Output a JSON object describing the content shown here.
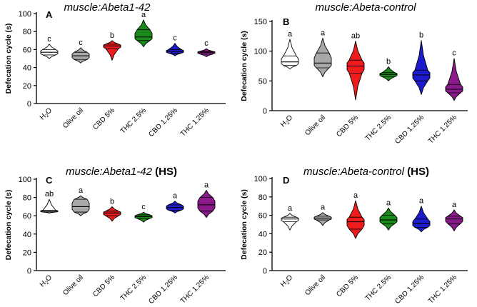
{
  "figure": {
    "categories": [
      "H2O",
      "Olive oil",
      "CBD 5%",
      "THC 2.5%",
      "CBD 1.25%",
      "THC 1.25%"
    ],
    "colors": {
      "H2O": "#ffffff",
      "Olive oil": "#a8a8a8",
      "CBD 5%": "#ee1c1c",
      "THC 2.5%": "#1a8a1a",
      "CBD 1.25%": "#1c1ccc",
      "THC 1.25%": "#8a1a8a"
    }
  },
  "chart_data": [
    {
      "panel": "A",
      "type": "violin",
      "title": "muscle:Abeta1-42",
      "title_suffix": "",
      "ylabel": "Defecation cycle (s)",
      "ylim": [
        0,
        100
      ],
      "yticks": [
        0,
        20,
        40,
        60,
        80,
        100
      ],
      "categories": [
        "H2O",
        "Olive oil",
        "CBD 5%",
        "THC 2.5%",
        "CBD 1.25%",
        "THC 1.25%"
      ],
      "series": [
        {
          "category": "H2O",
          "min": 50,
          "q1": 54,
          "median": 57,
          "q3": 60,
          "max": 66,
          "letter": "c"
        },
        {
          "category": "Olive oil",
          "min": 45,
          "q1": 49,
          "median": 53,
          "q3": 57,
          "max": 62,
          "letter": "c"
        },
        {
          "category": "CBD 5%",
          "min": 48,
          "q1": 61,
          "median": 64,
          "q3": 66,
          "max": 70,
          "letter": "b"
        },
        {
          "category": "THC 2.5%",
          "min": 63,
          "q1": 70,
          "median": 74,
          "q3": 82,
          "max": 93,
          "letter": "a"
        },
        {
          "category": "CBD 1.25%",
          "min": 53,
          "q1": 56,
          "median": 58,
          "q3": 60,
          "max": 67,
          "letter": "c"
        },
        {
          "category": "THC 1.25%",
          "min": 52,
          "q1": 55,
          "median": 57,
          "q3": 58,
          "max": 61,
          "letter": "c"
        }
      ]
    },
    {
      "panel": "B",
      "type": "violin",
      "title": "muscle:Abeta-control",
      "title_suffix": "",
      "ylabel": "Defecation cycle (s)",
      "ylim": [
        0,
        150
      ],
      "yticks": [
        0,
        50,
        100,
        150
      ],
      "categories": [
        "H2O",
        "Olive oil",
        "CBD 5%",
        "THC 2.5%",
        "CBD 1.25%",
        "THC 1.25%"
      ],
      "series": [
        {
          "category": "H2O",
          "min": 70,
          "q1": 76,
          "median": 82,
          "q3": 92,
          "max": 120,
          "letter": "a"
        },
        {
          "category": "Olive oil",
          "min": 57,
          "q1": 72,
          "median": 80,
          "q3": 97,
          "max": 122,
          "letter": "a"
        },
        {
          "category": "CBD 5%",
          "min": 18,
          "q1": 63,
          "median": 75,
          "q3": 85,
          "max": 117,
          "letter": "ab"
        },
        {
          "category": "THC 2.5%",
          "min": 50,
          "q1": 57,
          "median": 61,
          "q3": 64,
          "max": 74,
          "letter": "b"
        },
        {
          "category": "CBD 1.25%",
          "min": 27,
          "q1": 50,
          "median": 60,
          "q3": 68,
          "max": 118,
          "letter": "b"
        },
        {
          "category": "THC 1.25%",
          "min": 17,
          "q1": 30,
          "median": 36,
          "q3": 44,
          "max": 88,
          "letter": "c"
        }
      ]
    },
    {
      "panel": "C",
      "type": "violin",
      "title": "muscle:Abeta1-42",
      "title_suffix": "(HS)",
      "ylabel": "Defecation cycle (s)",
      "ylim": [
        0,
        100
      ],
      "yticks": [
        0,
        20,
        40,
        60,
        80,
        100
      ],
      "categories": [
        "H2O",
        "Olive oil",
        "CBD 5%",
        "THC 2.5%",
        "CBD 1.25%",
        "THC 1.25%"
      ],
      "series": [
        {
          "category": "H2O",
          "min": 63,
          "q1": 64,
          "median": 65,
          "q3": 66,
          "max": 78,
          "letter": "ab"
        },
        {
          "category": "Olive oil",
          "min": 60,
          "q1": 64,
          "median": 70,
          "q3": 78,
          "max": 82,
          "letter": "a"
        },
        {
          "category": "CBD 5%",
          "min": 54,
          "q1": 60,
          "median": 63,
          "q3": 65,
          "max": 70,
          "letter": "b"
        },
        {
          "category": "THC 2.5%",
          "min": 53,
          "q1": 57,
          "median": 59,
          "q3": 61,
          "max": 64,
          "letter": "c"
        },
        {
          "category": "CBD 1.25%",
          "min": 63,
          "q1": 66,
          "median": 69,
          "q3": 72,
          "max": 76,
          "letter": "a"
        },
        {
          "category": "THC 1.25%",
          "min": 58,
          "q1": 65,
          "median": 72,
          "q3": 80,
          "max": 88,
          "letter": "a"
        }
      ]
    },
    {
      "panel": "D",
      "type": "violin",
      "title": "muscle:Abeta-control",
      "title_suffix": "(HS)",
      "ylabel": "Defecation cycle (s)",
      "ylim": [
        0,
        100
      ],
      "yticks": [
        0,
        20,
        40,
        60,
        80,
        100
      ],
      "categories": [
        "H2O",
        "Olive oil",
        "CBD 5%",
        "THC 2.5%",
        "CBD 1.25%",
        "THC 1.25%"
      ],
      "series": [
        {
          "category": "H2O",
          "min": 44,
          "q1": 53,
          "median": 56,
          "q3": 58,
          "max": 62,
          "letter": "a"
        },
        {
          "category": "Olive oil",
          "min": 49,
          "q1": 55,
          "median": 57,
          "q3": 59,
          "max": 63,
          "letter": "a"
        },
        {
          "category": "CBD 5%",
          "min": 35,
          "q1": 45,
          "median": 53,
          "q3": 58,
          "max": 76,
          "letter": "a"
        },
        {
          "category": "THC 2.5%",
          "min": 44,
          "q1": 51,
          "median": 55,
          "q3": 60,
          "max": 68,
          "letter": "a"
        },
        {
          "category": "CBD 1.25%",
          "min": 42,
          "q1": 47,
          "median": 51,
          "q3": 56,
          "max": 70,
          "letter": "a"
        },
        {
          "category": "THC 1.25%",
          "min": 43,
          "q1": 51,
          "median": 56,
          "q3": 59,
          "max": 66,
          "letter": "a"
        }
      ]
    }
  ]
}
